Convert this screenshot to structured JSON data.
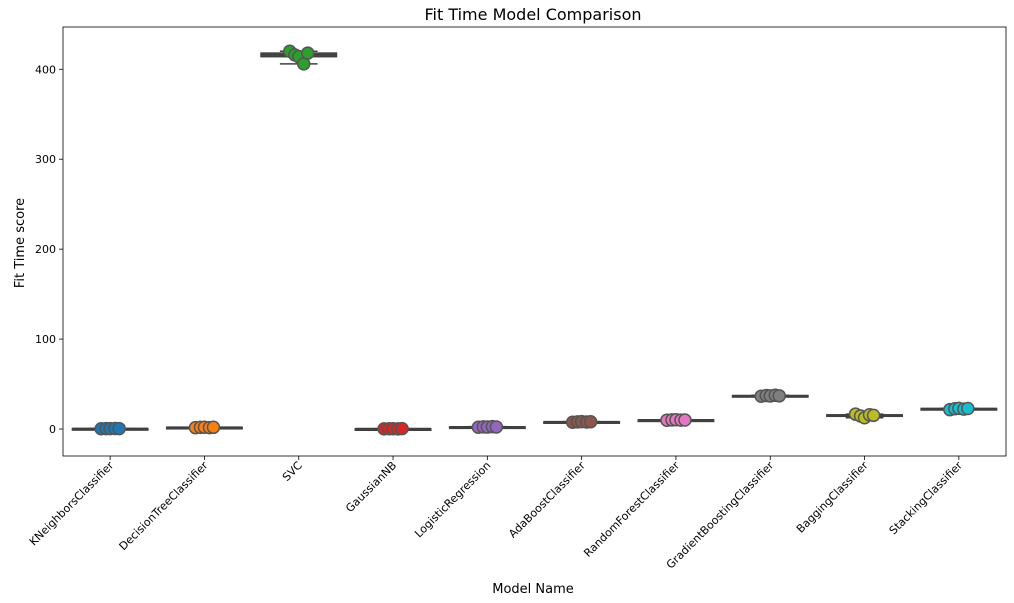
{
  "chart_data": {
    "type": "boxplot",
    "title": "Fit Time Model Comparison",
    "xlabel": "Model Name",
    "ylabel": "Fit Time score",
    "ylim": [
      -30,
      447
    ],
    "yticks": [
      0,
      100,
      200,
      300,
      400
    ],
    "grid": false,
    "legend": "none",
    "categories": [
      "KNeighborsClassifier",
      "DecisionTreeClassifier",
      "SVC",
      "GaussianNB",
      "LogisticRegression",
      "AdaBoostClassifier",
      "RandomForestClassifier",
      "GradientBoostingClassifier",
      "BaggingClassifier",
      "StackingClassifier"
    ],
    "colors": [
      "#1f77b4",
      "#ff7f0e",
      "#2ca02c",
      "#d62728",
      "#9467bd",
      "#8c564b",
      "#e377c2",
      "#7f7f7f",
      "#bcbd22",
      "#17becf"
    ],
    "box_color": "#404040",
    "points": [
      [
        0.3,
        0.5,
        0.4,
        0.6,
        0.5
      ],
      [
        1.5,
        1.8,
        2.0,
        1.6,
        1.9
      ],
      [
        420,
        416,
        414,
        406,
        418
      ],
      [
        0.2,
        0.3,
        0.3,
        0.2,
        0.4
      ],
      [
        2.0,
        2.4,
        2.2,
        2.6,
        2.3
      ],
      [
        7.5,
        8.0,
        8.2,
        7.8,
        8.1
      ],
      [
        9.8,
        10.1,
        10.3,
        9.9,
        10.0
      ],
      [
        36.5,
        37.2,
        36.8,
        37.5,
        36.9
      ],
      [
        16.5,
        14.5,
        12.5,
        15.8,
        15.2
      ],
      [
        21.5,
        22.5,
        23.0,
        22.1,
        22.8
      ]
    ]
  }
}
